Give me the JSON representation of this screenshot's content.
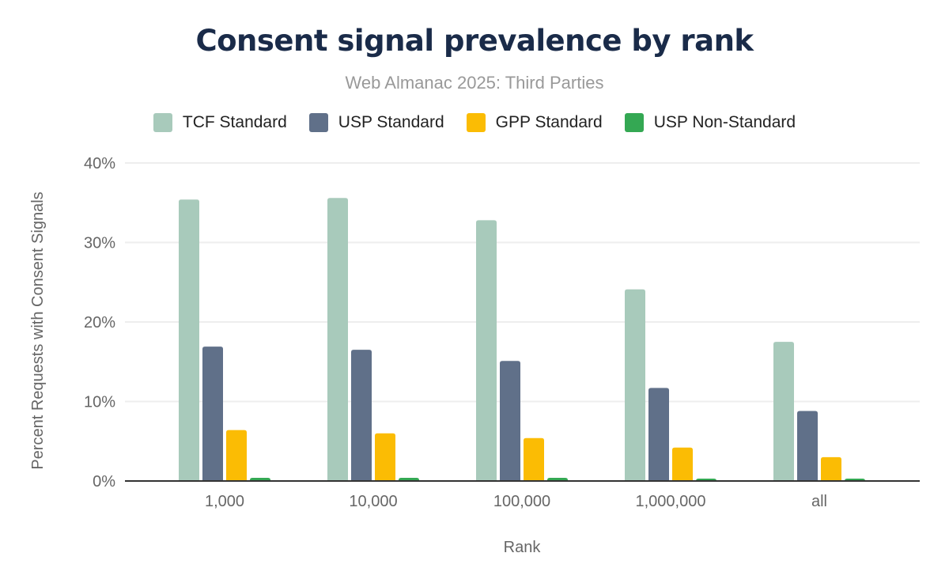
{
  "chart_data": {
    "type": "bar",
    "title": "Consent signal prevalence by rank",
    "subtitle": "Web Almanac 2025: Third Parties",
    "xlabel": "Rank",
    "ylabel": "Percent Requests with Consent Signals",
    "categories": [
      "1,000",
      "10,000",
      "100,000",
      "1,000,000",
      "all"
    ],
    "ylim": [
      0,
      40
    ],
    "yticks": [
      "0%",
      "10%",
      "20%",
      "30%",
      "40%"
    ],
    "grid": true,
    "legend_position": "top",
    "series": [
      {
        "name": "TCF Standard",
        "color": "#a8cabb",
        "values": [
          35.4,
          35.6,
          32.8,
          24.1,
          17.5
        ]
      },
      {
        "name": "USP Standard",
        "color": "#607089",
        "values": [
          16.9,
          16.5,
          15.1,
          11.7,
          8.8
        ]
      },
      {
        "name": "GPP Standard",
        "color": "#fbbc04",
        "values": [
          6.4,
          6.0,
          5.4,
          4.2,
          3.0
        ]
      },
      {
        "name": "USP Non-Standard",
        "color": "#34a853",
        "values": [
          0.4,
          0.4,
          0.4,
          0.3,
          0.3
        ]
      }
    ]
  }
}
